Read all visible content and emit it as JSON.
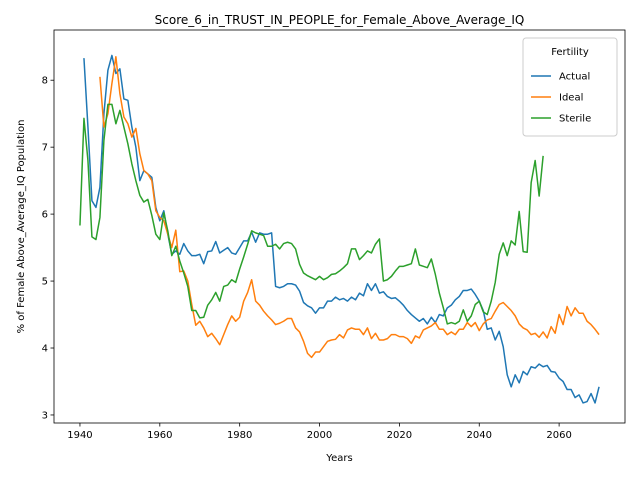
{
  "chart_data": {
    "type": "line",
    "title": "Score_6_in_TRUST_IN_PEOPLE_for_Female_Above_Average_IQ",
    "x_label": "Years",
    "y_label": "% of Female Above_Average_IQ Population",
    "legend_title": "Fertility",
    "legend": "upper right",
    "grid": false,
    "xlim": [
      1933.5,
      2076.5
    ],
    "ylim": [
      2.88,
      8.75
    ],
    "xticks": [
      1940,
      1960,
      1980,
      2000,
      2020,
      2040,
      2060
    ],
    "yticks": [
      3,
      4,
      5,
      6,
      7,
      8
    ],
    "x": [
      1940,
      1941,
      1942,
      1943,
      1944,
      1945,
      1946,
      1947,
      1948,
      1949,
      1950,
      1951,
      1952,
      1953,
      1954,
      1955,
      1956,
      1957,
      1958,
      1959,
      1960,
      1961,
      1962,
      1963,
      1964,
      1965,
      1966,
      1967,
      1968,
      1969,
      1970,
      1971,
      1972,
      1973,
      1974,
      1975,
      1976,
      1977,
      1978,
      1979,
      1980,
      1981,
      1982,
      1983,
      1984,
      1985,
      1986,
      1987,
      1988,
      1989,
      1990,
      1991,
      1992,
      1993,
      1994,
      1995,
      1996,
      1997,
      1998,
      1999,
      2000,
      2001,
      2002,
      2003,
      2004,
      2005,
      2006,
      2007,
      2008,
      2009,
      2010,
      2011,
      2012,
      2013,
      2014,
      2015,
      2016,
      2017,
      2018,
      2019,
      2020,
      2021,
      2022,
      2023,
      2024,
      2025,
      2026,
      2027,
      2028,
      2029,
      2030,
      2031,
      2032,
      2033,
      2034,
      2035,
      2036,
      2037,
      2038,
      2039,
      2040,
      2041,
      2042,
      2043,
      2044,
      2045,
      2046,
      2047,
      2048,
      2049,
      2050,
      2051,
      2052,
      2053,
      2054,
      2055,
      2056,
      2057,
      2058,
      2059,
      2060,
      2061,
      2062,
      2063,
      2064,
      2065,
      2066,
      2067,
      2068,
      2069,
      2070
    ],
    "series": [
      {
        "name": "Actual",
        "color": "#1f77b4",
        "values": [
          null,
          8.33,
          7.3,
          6.2,
          6.1,
          6.4,
          7.5,
          8.15,
          8.37,
          8.1,
          8.17,
          7.72,
          7.7,
          7.3,
          7.0,
          6.5,
          6.65,
          6.6,
          6.55,
          6.1,
          5.9,
          6.05,
          5.7,
          5.4,
          5.45,
          5.4,
          5.56,
          5.45,
          5.38,
          5.38,
          5.4,
          5.26,
          5.44,
          5.45,
          5.59,
          5.42,
          5.46,
          5.5,
          5.42,
          5.4,
          5.5,
          5.6,
          5.6,
          5.73,
          5.58,
          5.72,
          5.7,
          5.7,
          5.72,
          4.92,
          4.9,
          4.92,
          4.96,
          4.96,
          4.94,
          4.85,
          4.68,
          4.63,
          4.6,
          4.52,
          4.6,
          4.6,
          4.7,
          4.7,
          4.76,
          4.72,
          4.74,
          4.7,
          4.76,
          4.72,
          4.82,
          4.78,
          4.96,
          4.86,
          4.96,
          4.82,
          4.84,
          4.77,
          4.74,
          4.75,
          4.7,
          4.64,
          4.56,
          4.5,
          4.45,
          4.4,
          4.44,
          4.36,
          4.46,
          4.38,
          4.5,
          4.48,
          4.6,
          4.64,
          4.72,
          4.77,
          4.86,
          4.86,
          4.88,
          4.8,
          4.7,
          4.56,
          4.28,
          4.3,
          4.12,
          4.25,
          4.02,
          3.6,
          3.42,
          3.6,
          3.48,
          3.65,
          3.6,
          3.72,
          3.7,
          3.76,
          3.72,
          3.74,
          3.65,
          3.64,
          3.55,
          3.5,
          3.38,
          3.38,
          3.26,
          3.3,
          3.18,
          3.2,
          3.32,
          3.18,
          3.42
        ]
      },
      {
        "name": "Ideal",
        "color": "#ff7f0e",
        "values": [
          null,
          null,
          null,
          null,
          null,
          8.05,
          7.3,
          7.5,
          7.95,
          8.35,
          7.8,
          7.45,
          7.35,
          7.15,
          7.28,
          6.9,
          6.65,
          6.6,
          6.5,
          6.05,
          5.95,
          5.9,
          5.7,
          5.5,
          5.76,
          5.14,
          5.15,
          5.0,
          4.65,
          4.34,
          4.4,
          4.3,
          4.17,
          4.22,
          4.14,
          4.05,
          4.2,
          4.35,
          4.48,
          4.4,
          4.46,
          4.7,
          4.83,
          5.02,
          4.7,
          4.64,
          4.55,
          4.48,
          4.42,
          4.35,
          4.37,
          4.4,
          4.44,
          4.44,
          4.3,
          4.24,
          4.1,
          3.92,
          3.86,
          3.94,
          3.94,
          4.02,
          4.1,
          4.12,
          4.13,
          4.2,
          4.15,
          4.27,
          4.3,
          4.28,
          4.28,
          4.2,
          4.3,
          4.14,
          4.22,
          4.12,
          4.12,
          4.14,
          4.2,
          4.2,
          4.17,
          4.17,
          4.14,
          4.07,
          4.18,
          4.15,
          4.27,
          4.3,
          4.33,
          4.38,
          4.28,
          4.28,
          4.2,
          4.24,
          4.2,
          4.28,
          4.28,
          4.38,
          4.32,
          4.38,
          4.26,
          4.36,
          4.42,
          4.44,
          4.55,
          4.65,
          4.68,
          4.62,
          4.56,
          4.48,
          4.36,
          4.3,
          4.27,
          4.2,
          4.22,
          4.16,
          4.24,
          4.15,
          4.32,
          4.22,
          4.5,
          4.35,
          4.62,
          4.48,
          4.6,
          4.52,
          4.52,
          4.4,
          4.35,
          4.28,
          4.2
        ]
      },
      {
        "name": "Sterile",
        "color": "#2ca02c",
        "values": [
          5.83,
          7.43,
          6.8,
          5.66,
          5.62,
          5.95,
          7.1,
          7.64,
          7.64,
          7.35,
          7.55,
          7.3,
          7.05,
          6.75,
          6.5,
          6.28,
          6.18,
          6.22,
          5.98,
          5.7,
          5.62,
          6.02,
          5.75,
          5.38,
          5.52,
          5.3,
          5.12,
          4.92,
          4.56,
          4.56,
          4.45,
          4.46,
          4.64,
          4.72,
          4.83,
          4.7,
          4.92,
          4.94,
          5.02,
          4.98,
          5.18,
          5.36,
          5.55,
          5.75,
          5.72,
          5.7,
          5.68,
          5.52,
          5.52,
          5.55,
          5.48,
          5.56,
          5.58,
          5.56,
          5.48,
          5.25,
          5.12,
          5.08,
          5.05,
          5.02,
          5.07,
          5.02,
          5.05,
          5.1,
          5.11,
          5.15,
          5.2,
          5.26,
          5.48,
          5.48,
          5.32,
          5.38,
          5.45,
          5.42,
          5.55,
          5.63,
          5.0,
          5.02,
          5.07,
          5.15,
          5.22,
          5.22,
          5.24,
          5.26,
          5.48,
          5.24,
          5.22,
          5.2,
          5.33,
          5.1,
          4.82,
          4.6,
          4.36,
          4.38,
          4.36,
          4.4,
          4.57,
          4.4,
          4.48,
          4.65,
          4.7,
          4.54,
          4.5,
          4.7,
          4.98,
          5.4,
          5.57,
          5.38,
          5.6,
          5.54,
          6.04,
          5.44,
          5.43,
          6.47,
          6.8,
          6.27,
          6.87,
          null,
          null,
          null,
          null,
          null,
          null,
          null,
          null,
          null,
          null,
          null,
          null,
          null,
          null
        ]
      }
    ]
  }
}
